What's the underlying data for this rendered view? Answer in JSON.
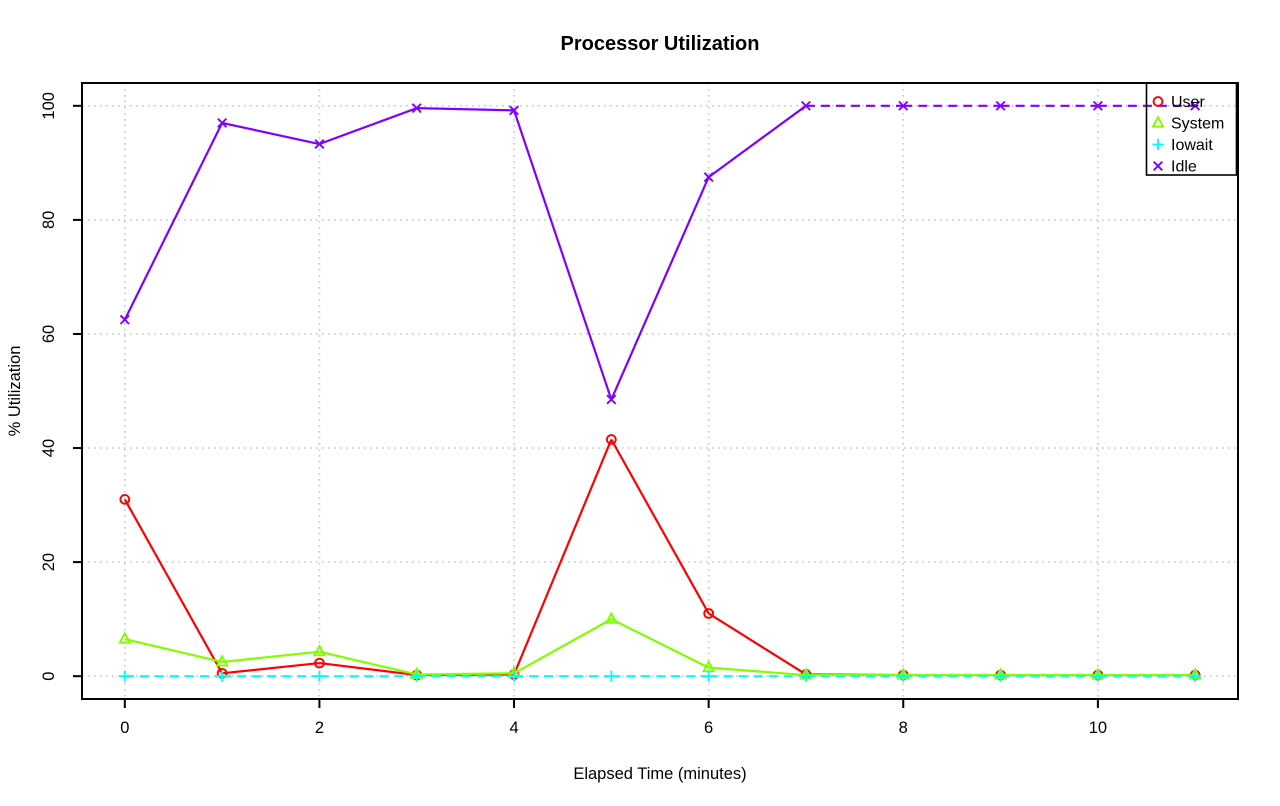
{
  "chart_data": {
    "type": "line",
    "title": "Processor Utilization",
    "xlabel": "Elapsed Time (minutes)",
    "ylabel": "% Utilization",
    "x": [
      0,
      1,
      2,
      3,
      4,
      5,
      6,
      7,
      8,
      9,
      10,
      11
    ],
    "xlim": [
      -0.44,
      11.44
    ],
    "ylim": [
      -4,
      104
    ],
    "xticks": [
      0,
      2,
      4,
      6,
      8,
      10
    ],
    "yticks": [
      0,
      20,
      40,
      60,
      80,
      100
    ],
    "grid": "dotted",
    "grid_color": "#c8c8c8",
    "axis_color": "#000000",
    "legend_position": "top-right",
    "series": [
      {
        "name": "User",
        "color": "#ff0000",
        "marker": "circle",
        "line": "solid",
        "values": [
          31,
          0.5,
          2.3,
          0.2,
          0.3,
          41.5,
          11,
          0.3,
          0.2,
          0.2,
          0.2,
          0.2
        ]
      },
      {
        "name": "System",
        "color": "#80ff00",
        "marker": "triangle",
        "line": "solid",
        "values": [
          6.5,
          2.5,
          4.3,
          0.3,
          0.5,
          10,
          1.5,
          0.2,
          0.2,
          0.2,
          0.2,
          0.2
        ]
      },
      {
        "name": "Iowait",
        "color": "#00ffff",
        "marker": "plus",
        "line": "dashed",
        "values": [
          0,
          0,
          0,
          0,
          0,
          0,
          0,
          0,
          0,
          0,
          0,
          0
        ]
      },
      {
        "name": "Idle",
        "color": "#8000ff",
        "marker": "x",
        "line": "solid",
        "dash_when_flat_at": 100,
        "values": [
          62.5,
          97,
          93.3,
          99.6,
          99.2,
          48.5,
          87.5,
          100,
          100,
          100,
          100,
          100
        ]
      }
    ]
  }
}
